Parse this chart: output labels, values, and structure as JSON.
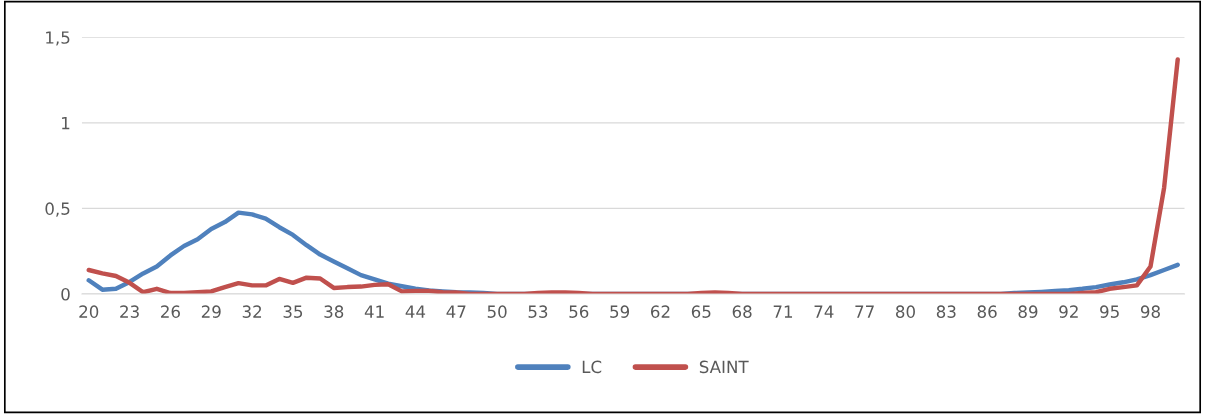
{
  "chart_data": {
    "type": "line",
    "categories": [
      "20",
      null,
      null,
      "23",
      null,
      null,
      "26",
      null,
      null,
      "29",
      null,
      null,
      "32",
      null,
      null,
      "35",
      null,
      null,
      "38",
      null,
      null,
      "41",
      null,
      null,
      "44",
      null,
      null,
      "47",
      null,
      null,
      "50",
      null,
      null,
      "53",
      null,
      null,
      "56",
      null,
      null,
      "59",
      null,
      null,
      "62",
      null,
      null,
      "65",
      null,
      null,
      "68",
      null,
      null,
      "71",
      null,
      null,
      "74",
      null,
      null,
      "77",
      null,
      null,
      "80",
      null,
      null,
      "83",
      null,
      null,
      "86",
      null,
      null,
      "89",
      null,
      null,
      "92",
      null,
      null,
      "95",
      null,
      null,
      "98",
      null,
      null
    ],
    "series": [
      {
        "name": "LC",
        "color": "#4f81bd",
        "values": [
          0.08,
          0.025,
          0.03,
          0.07,
          0.12,
          0.16,
          0.225,
          0.28,
          0.32,
          0.38,
          0.42,
          0.475,
          0.465,
          0.44,
          0.39,
          0.345,
          0.285,
          0.23,
          0.19,
          0.15,
          0.11,
          0.085,
          0.06,
          0.045,
          0.03,
          0.02,
          0.015,
          0.01,
          0.008,
          0.005,
          0,
          0,
          0,
          0,
          0,
          0,
          0,
          0,
          0,
          0,
          0,
          0,
          0,
          0,
          0,
          0,
          0,
          0,
          0,
          0,
          0,
          0,
          0,
          0,
          0,
          0,
          0,
          0,
          0,
          0,
          0,
          0,
          0,
          0,
          0,
          0,
          0,
          0,
          0.005,
          0.008,
          0.012,
          0.017,
          0.022,
          0.03,
          0.04,
          0.055,
          0.068,
          0.085,
          0.11,
          0.14,
          0.17
        ]
      },
      {
        "name": "SAINT",
        "color": "#c0504d",
        "values": [
          0.14,
          0.12,
          0.105,
          0.065,
          0.01,
          0.03,
          0.005,
          0.005,
          0.01,
          0.015,
          0.04,
          0.063,
          0.05,
          0.05,
          0.088,
          0.065,
          0.095,
          0.09,
          0.035,
          0.04,
          0.043,
          0.053,
          0.057,
          0.015,
          0.018,
          0.018,
          0.01,
          0.008,
          0,
          0,
          0,
          0,
          0,
          0.005,
          0.008,
          0.008,
          0.005,
          0,
          0,
          0,
          0,
          0,
          0,
          0,
          0,
          0.005,
          0.008,
          0.005,
          0,
          0,
          0,
          0,
          0,
          0,
          0,
          0,
          0,
          0,
          0,
          0,
          0,
          0,
          0,
          0,
          0,
          0,
          0,
          0,
          0,
          0,
          0,
          0,
          0,
          0.005,
          0.01,
          0.03,
          0.04,
          0.05,
          0.16,
          0.62,
          1.37
        ]
      }
    ],
    "ylim": [
      0,
      1.5
    ],
    "yticks": [
      0,
      {
        "value": 0.5,
        "label": "0,5"
      },
      1,
      {
        "value": 1.5,
        "label": "1,5"
      }
    ],
    "grid": "y",
    "legend": "bottom",
    "marker": "none",
    "line_style": "solid"
  }
}
